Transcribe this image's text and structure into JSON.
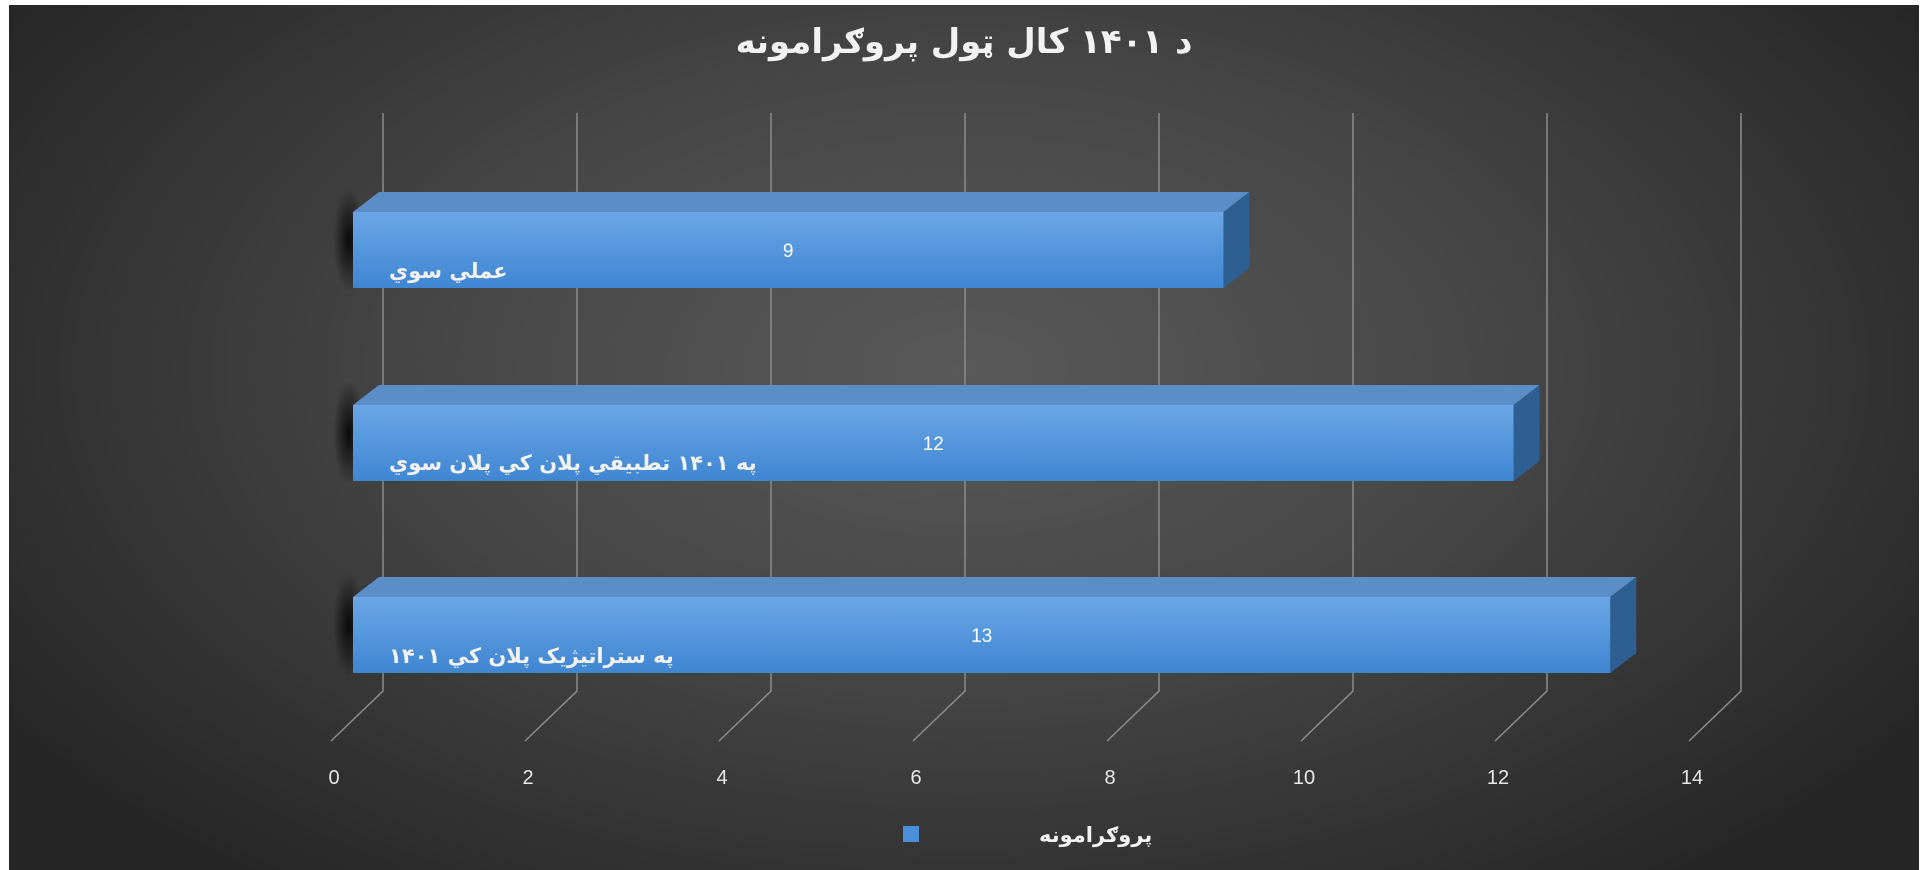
{
  "chart_data": {
    "type": "bar",
    "orientation": "horizontal",
    "style": "3d",
    "title": "د ۱۴۰۱ کال ټول پروګرامونه",
    "categories": [
      "په ستراتیژیک پلان کي ۱۴۰۱",
      "په ۱۴۰۱ تطبیقي پلان کي پلان سوي",
      "عملي سوي"
    ],
    "series": [
      {
        "name": "پروګرامونه",
        "values": [
          13,
          12,
          9
        ],
        "color": "#4a8fd8"
      }
    ],
    "xlim": [
      0,
      14
    ],
    "xticks": [
      0,
      2,
      4,
      6,
      8,
      10,
      12,
      14
    ],
    "grid": true,
    "legend_position": "bottom",
    "background_color": "#474747",
    "bar_top_color": "#5b8ec6",
    "bar_side_color": "#2e5f93"
  }
}
